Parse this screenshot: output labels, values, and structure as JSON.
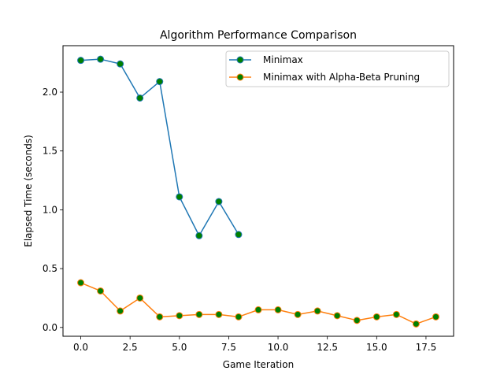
{
  "chart_data": {
    "type": "line",
    "title": "Algorithm Performance Comparison",
    "xlabel": "Game Iteration",
    "ylabel": "Elapsed Time (seconds)",
    "xlim": [
      -0.9,
      18.9
    ],
    "ylim": [
      -0.075,
      2.395
    ],
    "xticks": [
      0.0,
      2.5,
      5.0,
      7.5,
      10.0,
      12.5,
      15.0,
      17.5
    ],
    "xtick_labels": [
      "0.0",
      "2.5",
      "5.0",
      "7.5",
      "10.0",
      "12.5",
      "15.0",
      "17.5"
    ],
    "yticks": [
      0.0,
      0.5,
      1.0,
      1.5,
      2.0
    ],
    "ytick_labels": [
      "0.0",
      "0.5",
      "1.0",
      "1.5",
      "2.0"
    ],
    "grid": false,
    "legend_position": "top-right",
    "marker_face_color": "#008000",
    "series": [
      {
        "name": "Minimax",
        "color": "#1f77b4",
        "x": [
          0,
          1,
          2,
          3,
          4,
          5,
          6,
          7,
          8
        ],
        "y": [
          2.27,
          2.28,
          2.24,
          1.95,
          2.09,
          1.11,
          0.78,
          1.07,
          0.79
        ]
      },
      {
        "name": "Minimax with Alpha-Beta Pruning",
        "color": "#ff7f0e",
        "x": [
          0,
          1,
          2,
          3,
          4,
          5,
          6,
          7,
          8,
          9,
          10,
          11,
          12,
          13,
          14,
          15,
          16,
          17,
          18
        ],
        "y": [
          0.38,
          0.31,
          0.14,
          0.25,
          0.09,
          0.1,
          0.11,
          0.11,
          0.09,
          0.15,
          0.15,
          0.11,
          0.14,
          0.1,
          0.06,
          0.09,
          0.11,
          0.03,
          0.09
        ]
      }
    ]
  }
}
